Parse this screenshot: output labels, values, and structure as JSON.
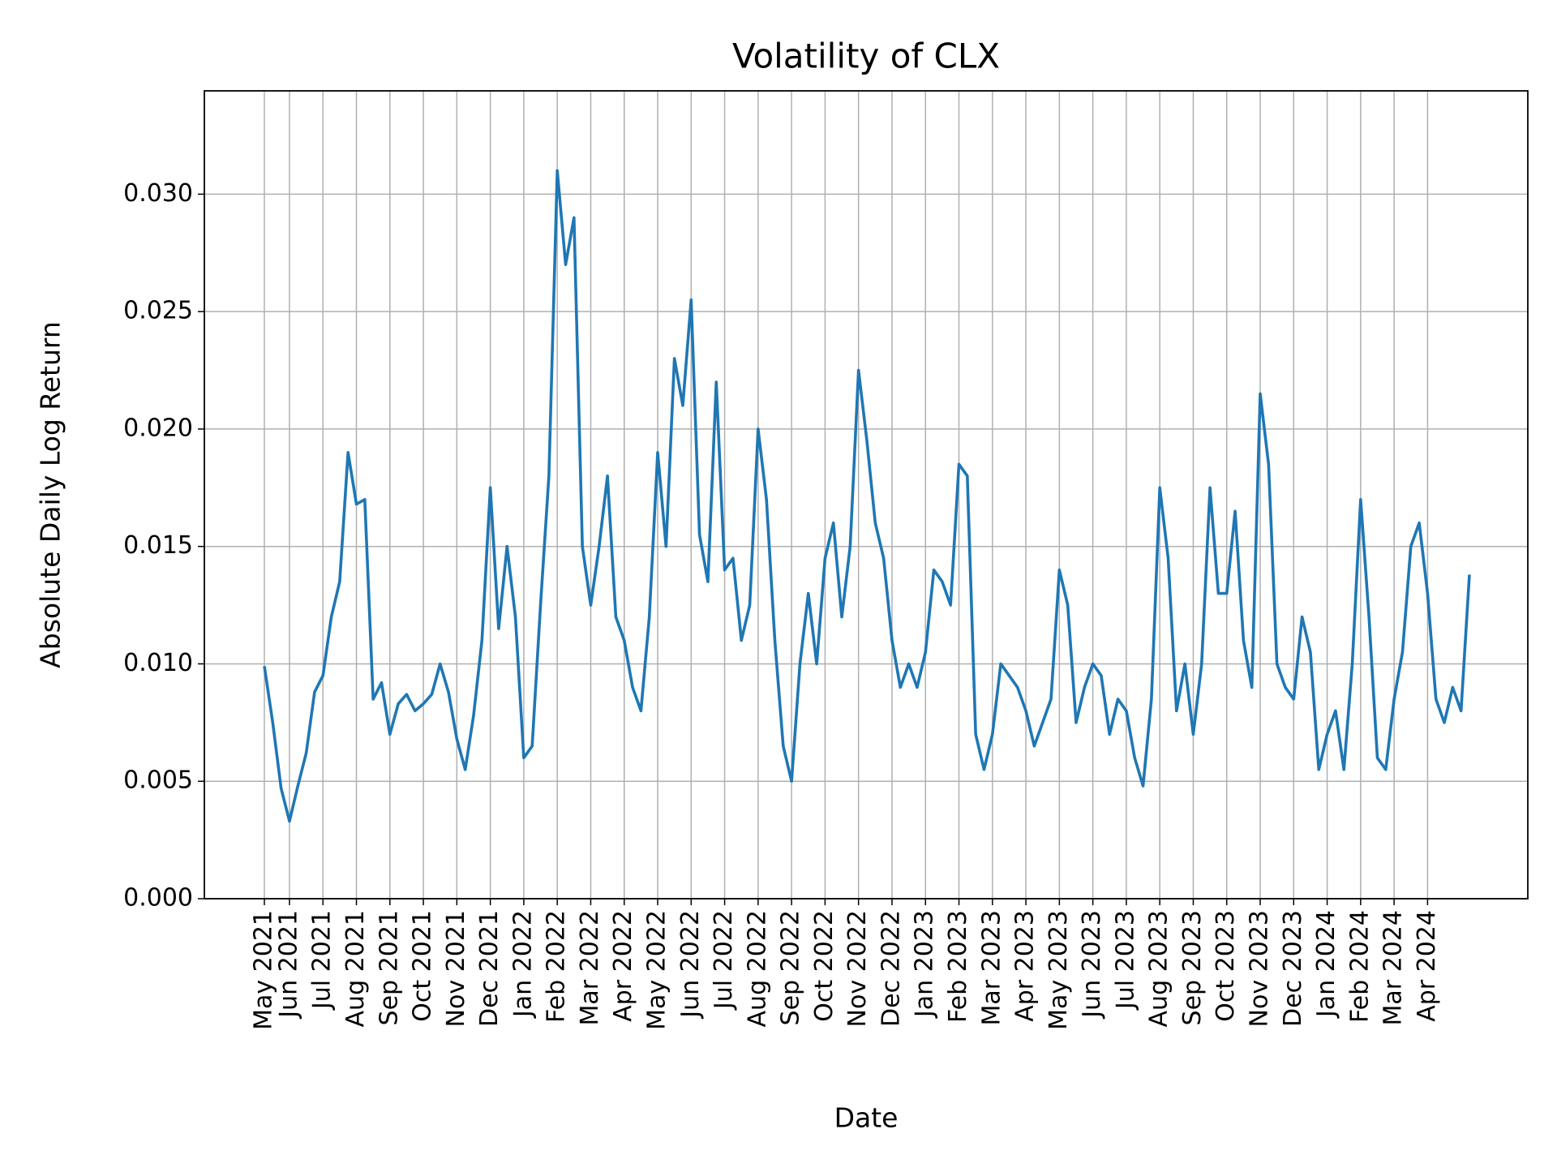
{
  "chart_data": {
    "type": "line",
    "title": "Volatility of CLX",
    "x_label": "Date",
    "y_label": "Absolute Daily Log Return",
    "categories": [
      "May 2021",
      null,
      null,
      "Jun 2021",
      null,
      null,
      null,
      "Jul 2021",
      null,
      null,
      null,
      "Aug 2021",
      null,
      null,
      null,
      "Sep 2021",
      null,
      null,
      null,
      "Oct 2021",
      null,
      null,
      null,
      "Nov 2021",
      null,
      null,
      null,
      "Dec 2021",
      null,
      null,
      null,
      "Jan 2022",
      null,
      null,
      null,
      "Feb 2022",
      null,
      null,
      null,
      "Mar 2022",
      null,
      null,
      null,
      "Apr 2022",
      null,
      null,
      null,
      "May 2022",
      null,
      null,
      null,
      "Jun 2022",
      null,
      null,
      null,
      "Jul 2022",
      null,
      null,
      null,
      "Aug 2022",
      null,
      null,
      null,
      "Sep 2022",
      null,
      null,
      null,
      "Oct 2022",
      null,
      null,
      null,
      "Nov 2022",
      null,
      null,
      null,
      "Dec 2022",
      null,
      null,
      null,
      "Jan 2023",
      null,
      null,
      null,
      "Feb 2023",
      null,
      null,
      null,
      "Mar 2023",
      null,
      null,
      null,
      "Apr 2023",
      null,
      null,
      null,
      "May 2023",
      null,
      null,
      null,
      "Jun 2023",
      null,
      null,
      null,
      "Jul 2023",
      null,
      null,
      null,
      "Aug 2023",
      null,
      null,
      null,
      "Sep 2023",
      null,
      null,
      null,
      "Oct 2023",
      null,
      null,
      null,
      "Nov 2023",
      null,
      null,
      null,
      "Dec 2023",
      null,
      null,
      null,
      "Jan 2024",
      null,
      null,
      null,
      "Feb 2024",
      null,
      null,
      null,
      "Mar 2024",
      null,
      null,
      null,
      "Apr 2024",
      null,
      null,
      null,
      null,
      null
    ],
    "values": [
      0.0099,
      0.0075,
      0.0047,
      0.0033,
      0.0048,
      0.0062,
      0.0088,
      0.0095,
      0.012,
      0.0135,
      0.019,
      0.0168,
      0.017,
      0.0085,
      0.0092,
      0.007,
      0.0083,
      0.0087,
      0.008,
      0.0083,
      0.0087,
      0.01,
      0.0088,
      0.0068,
      0.0055,
      0.0078,
      0.011,
      0.0175,
      0.0115,
      0.015,
      0.012,
      0.006,
      0.0065,
      0.0125,
      0.018,
      0.031,
      0.027,
      0.029,
      0.015,
      0.0125,
      0.015,
      0.018,
      0.012,
      0.011,
      0.009,
      0.008,
      0.012,
      0.019,
      0.015,
      0.023,
      0.021,
      0.0255,
      0.0155,
      0.0135,
      0.022,
      0.014,
      0.0145,
      0.011,
      0.0125,
      0.02,
      0.017,
      0.011,
      0.0065,
      0.005,
      0.01,
      0.013,
      0.01,
      0.0145,
      0.016,
      0.012,
      0.015,
      0.0225,
      0.0195,
      0.016,
      0.0145,
      0.011,
      0.009,
      0.01,
      0.009,
      0.0105,
      0.014,
      0.0135,
      0.0125,
      0.0185,
      0.018,
      0.007,
      0.0055,
      0.007,
      0.01,
      0.0095,
      0.009,
      0.008,
      0.0065,
      0.0075,
      0.0085,
      0.014,
      0.0125,
      0.0075,
      0.009,
      0.01,
      0.0095,
      0.007,
      0.0085,
      0.008,
      0.006,
      0.0048,
      0.0085,
      0.0175,
      0.0145,
      0.008,
      0.01,
      0.007,
      0.01,
      0.0175,
      0.013,
      0.013,
      0.0165,
      0.011,
      0.009,
      0.0215,
      0.0185,
      0.01,
      0.009,
      0.0085,
      0.012,
      0.0105,
      0.0055,
      0.007,
      0.008,
      0.0055,
      0.01,
      0.017,
      0.012,
      0.006,
      0.0055,
      0.0085,
      0.0105,
      0.015,
      0.016,
      0.013,
      0.0085,
      0.0075,
      0.009,
      0.008,
      0.0138
    ],
    "color": "#1f77b4",
    "ylim": [
      0,
      0.0344
    ],
    "yticks": [
      {
        "value": 0,
        "label": "0.000"
      },
      {
        "value": 0.005,
        "label": "0.005"
      },
      {
        "value": 0.01,
        "label": "0.010"
      },
      {
        "value": 0.015,
        "label": "0.015"
      },
      {
        "value": 0.02,
        "label": "0.020"
      },
      {
        "value": 0.025,
        "label": "0.025"
      },
      {
        "value": 0.03,
        "label": "0.030"
      }
    ],
    "grid": true
  }
}
